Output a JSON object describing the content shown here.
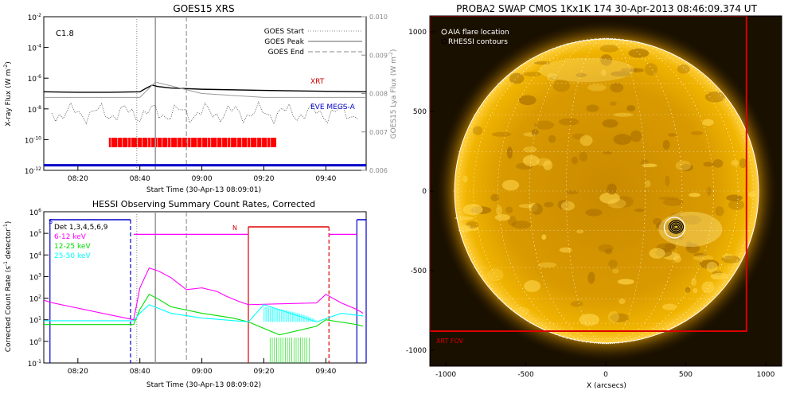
{
  "chart_data": [
    {
      "type": "line",
      "title": "GOES15 XRS",
      "xlabel": "Start Time (30-Apr-13 08:09:01)",
      "ylabel": "X-ray Flux (W m^-2)",
      "ylabel_main": "X-ray Flux (W m",
      "ylabel_sup": "-2",
      "ylabel_close": ")",
      "y2label": "GOES15 Lya Flux (W m^-2)",
      "y2label_main": "GOES15 Lya Flux (W m",
      "y2label_sup": "-2",
      "y2label_close": ")",
      "xlim": [
        "08:09",
        "09:53"
      ],
      "ylim": [
        1e-12,
        0.01
      ],
      "yscale": "log",
      "y2lim": [
        0.006,
        0.01
      ],
      "xticks": [
        "08:20",
        "08:40",
        "09:00",
        "09:20",
        "09:40"
      ],
      "yticks": [
        {
          "base": "10",
          "exp": "-2"
        },
        {
          "base": "10",
          "exp": "-4"
        },
        {
          "base": "10",
          "exp": "-6"
        },
        {
          "base": "10",
          "exp": "-8"
        },
        {
          "base": "10",
          "exp": "-10"
        },
        {
          "base": "10",
          "exp": "-12"
        }
      ],
      "y2ticks": [
        "0.010",
        "0.009",
        "0.008",
        "0.007",
        "0.006"
      ],
      "annotation": "C1.8",
      "legend": {
        "position": "top-right",
        "entries": [
          "GOES Start",
          "GOES Peak",
          "GOES End"
        ]
      },
      "series_labels": {
        "xrt": "XRT",
        "eve": "EVE MEGS-A"
      },
      "colors": {
        "xrt": "#cc0000",
        "eve": "#0000cc",
        "lya": "#888888",
        "bar": "#ff0000"
      },
      "markers": {
        "goes_start": "08:39",
        "goes_peak": "08:45",
        "goes_end": "08:55"
      },
      "series": [
        {
          "name": "XRT",
          "x": [
            "08:09",
            "08:20",
            "08:30",
            "08:40",
            "08:42",
            "08:44",
            "08:46",
            "08:50",
            "09:00",
            "09:20",
            "09:40",
            "09:53"
          ],
          "values": [
            1.3e-07,
            1.2e-07,
            1.2e-07,
            1.3e-07,
            2.2e-07,
            3.5e-07,
            2.8e-07,
            2.3e-07,
            1.9e-07,
            1.6e-07,
            1.4e-07,
            1.3e-07
          ]
        },
        {
          "name": "Lya",
          "x": [
            "08:09",
            "08:40",
            "08:45",
            "09:00",
            "09:20",
            "09:40",
            "09:53"
          ],
          "values": [
            0.0079,
            0.0079,
            0.0083,
            0.008,
            0.0079,
            0.0079,
            0.0079
          ]
        },
        {
          "name": "EVE MEGS-A",
          "x": [
            "08:09",
            "09:53"
          ],
          "values": [
            1.5e-12,
            1.5e-12
          ]
        }
      ],
      "bar_interval": [
        "08:30",
        "09:24"
      ]
    },
    {
      "type": "line",
      "title": "HESSI Observing Summary Count Rates, Corrected",
      "xlabel": "Start Time (30-Apr-13 08:09:02)",
      "ylabel": "Corrected Count Rate (s^-1 detector^-1)",
      "ylabel_main": "Corrected Count Rate (s",
      "ylabel_sup1": "-1",
      "ylabel_mid": " detector",
      "ylabel_sup2": "-1",
      "ylabel_close": ")",
      "xlim": [
        "08:09",
        "09:53"
      ],
      "ylim": [
        0.1,
        1000000.0
      ],
      "yscale": "log",
      "xticks": [
        "08:20",
        "08:40",
        "09:00",
        "09:20",
        "09:40"
      ],
      "yticks": [
        {
          "base": "10",
          "exp": "6"
        },
        {
          "base": "10",
          "exp": "5"
        },
        {
          "base": "10",
          "exp": "4"
        },
        {
          "base": "10",
          "exp": "3"
        },
        {
          "base": "10",
          "exp": "2"
        },
        {
          "base": "10",
          "exp": "1"
        },
        {
          "base": "10",
          "exp": "0"
        },
        {
          "base": "10",
          "exp": "-1"
        }
      ],
      "legend": {
        "position": "top-left",
        "detectors": "Det 1,3,4,5,6,9",
        "entries": [
          "6-12 keV",
          "12-25 keV",
          "25-50 keV"
        ]
      },
      "colors": {
        "low": "#ff00ff",
        "mid": "#00dd00",
        "high": "#00ffff",
        "saa": "#0000cc",
        "night": "#dd0000"
      },
      "flags": {
        "saa": "S",
        "night": "N"
      },
      "series": [
        {
          "name": "6-12 keV",
          "x": [
            "08:09",
            "08:12",
            "08:38",
            "08:40",
            "08:43",
            "08:46",
            "08:50",
            "08:55",
            "09:00",
            "09:05",
            "09:08",
            "09:12",
            "09:15",
            "09:37",
            "09:40",
            "09:45",
            "09:50",
            "09:52"
          ],
          "values": [
            80,
            60,
            10,
            300,
            2500,
            1800,
            900,
            250,
            300,
            200,
            120,
            70,
            50,
            60,
            150,
            60,
            30,
            20
          ]
        },
        {
          "name": "12-25 keV",
          "x": [
            "08:09",
            "08:38",
            "08:40",
            "08:43",
            "08:46",
            "08:50",
            "09:00",
            "09:10",
            "09:15",
            "09:25",
            "09:37",
            "09:40",
            "09:50",
            "09:52"
          ],
          "values": [
            6,
            6,
            30,
            150,
            90,
            40,
            20,
            12,
            8,
            2,
            5,
            10,
            6,
            5
          ]
        },
        {
          "name": "25-50 keV",
          "x": [
            "08:09",
            "08:38",
            "08:40",
            "08:43",
            "08:50",
            "09:00",
            "09:15",
            "09:20",
            "09:37",
            "09:45",
            "09:52"
          ],
          "values": [
            9,
            9,
            20,
            50,
            20,
            12,
            8,
            50,
            8,
            20,
            15
          ]
        }
      ],
      "saa_intervals": [
        [
          "08:11",
          "08:37"
        ],
        [
          "09:50",
          "09:53"
        ]
      ],
      "night_intervals": [
        [
          "09:15",
          "09:41"
        ]
      ],
      "markers": {
        "goes_start": "08:39",
        "goes_peak": "08:45",
        "goes_end": "08:55"
      }
    },
    {
      "type": "image",
      "title": "PROBA2 SWAP CMOS 1Kx1K 174 30-Apr-2013 08:46:09.374 UT",
      "xlabel": "X (arcsecs)",
      "ylabel": "",
      "xlim": [
        -1100,
        1100
      ],
      "ylim": [
        -1100,
        1100
      ],
      "xticks": [
        "-1000",
        "-500",
        "0",
        "500",
        "1000"
      ],
      "yticks": [
        "1000",
        "500",
        "0",
        "-500",
        "-1000"
      ],
      "legend": {
        "position": "top-left",
        "entries": [
          "AIA flare location",
          "RHESSI contours"
        ]
      },
      "fov_label": "XRT FOV",
      "colors": {
        "sun": "#e8a000",
        "fov": "#dd0000",
        "bg": "#1a1000"
      },
      "flare_location": [
        430,
        -230
      ],
      "limb_radius": 955,
      "xrt_fov": {
        "x": [
          -1100,
          880
        ],
        "y": [
          -880,
          1100
        ]
      }
    }
  ]
}
